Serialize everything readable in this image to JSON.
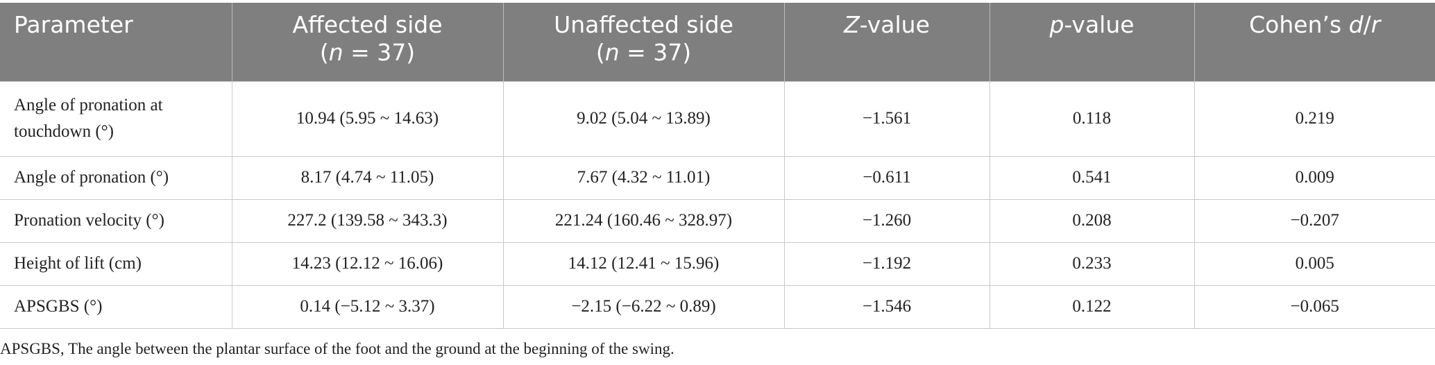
{
  "table": {
    "headers": [
      [
        [
          {
            "text": "Parameter"
          }
        ]
      ],
      [
        [
          {
            "text": "Affected side"
          }
        ],
        [
          {
            "text": "("
          },
          {
            "text": "n",
            "italic": true
          },
          {
            "text": " = 37)"
          }
        ]
      ],
      [
        [
          {
            "text": "Unaffected side"
          }
        ],
        [
          {
            "text": "("
          },
          {
            "text": "n",
            "italic": true
          },
          {
            "text": " = 37)"
          }
        ]
      ],
      [
        [
          {
            "text": "Z",
            "italic": true
          },
          {
            "text": "-value"
          }
        ]
      ],
      [
        [
          {
            "text": "p",
            "italic": true
          },
          {
            "text": "-value"
          }
        ]
      ],
      [
        [
          {
            "text": "Cohen’s "
          },
          {
            "text": "d",
            "italic": true
          },
          {
            "text": "/"
          },
          {
            "text": "r",
            "italic": true
          }
        ]
      ]
    ],
    "rows": [
      [
        "Angle of pronation at touchdown (°)",
        "10.94 (5.95 ~ 14.63)",
        "9.02 (5.04 ~ 13.89)",
        "−1.561",
        "0.118",
        "0.219"
      ],
      [
        "Angle of pronation (°)",
        "8.17 (4.74 ~ 11.05)",
        "7.67 (4.32 ~ 11.01)",
        "−0.611",
        "0.541",
        "0.009"
      ],
      [
        "Pronation velocity (°)",
        "227.2 (139.58 ~ 343.3)",
        "221.24 (160.46 ~ 328.97)",
        "−1.260",
        "0.208",
        "−0.207"
      ],
      [
        "Height of lift (cm)",
        "14.23 (12.12 ~ 16.06)",
        "14.12 (12.41 ~ 15.96)",
        "−1.192",
        "0.233",
        "0.005"
      ],
      [
        "APSGBS (°)",
        "0.14 (−5.12 ~ 3.37)",
        "−2.15 (−6.22 ~ 0.89)",
        "−1.546",
        "0.122",
        "−0.065"
      ]
    ],
    "footnote": "APSGBS, The angle between the plantar surface of the foot and the ground at the beginning of the swing."
  }
}
